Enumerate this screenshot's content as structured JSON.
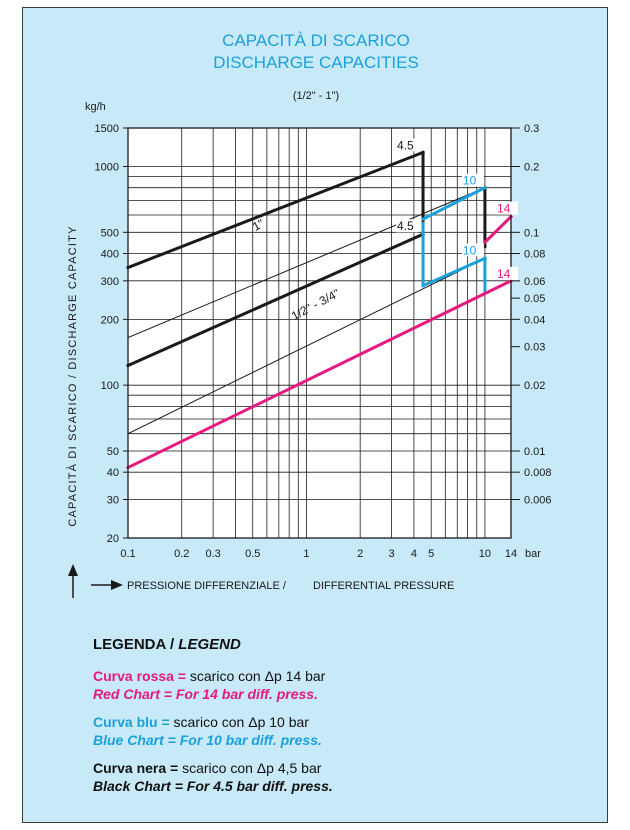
{
  "chart_data": {
    "type": "line",
    "title": [
      "CAPACITÀ DI SCARICO",
      "DISCHARGE CAPACITIES"
    ],
    "subtitle": "(1/2\" - 1\")",
    "x_scale": "log",
    "y_scale": "log",
    "xlim": [
      0.1,
      14
    ],
    "ylim": [
      20,
      1500
    ],
    "y2lim": [
      0.006,
      0.3
    ],
    "y_unit": "kg/h",
    "x_unit": "bar",
    "ylabel": "CAPACITÀ DI SCARICO / DISCHARGE CAPACITY",
    "xlabel": [
      "PRESSIONE DIFFERENZIALE /",
      "DIFFERENTIAL PRESSURE"
    ],
    "x_ticks": [
      {
        "v": 0.1,
        "label": "0.1"
      },
      {
        "v": 0.2,
        "label": "0.2"
      },
      {
        "v": 0.3,
        "label": "0.3"
      },
      {
        "v": 0.5,
        "label": "0.5"
      },
      {
        "v": 1,
        "label": "1"
      },
      {
        "v": 2,
        "label": "2"
      },
      {
        "v": 3,
        "label": "3"
      },
      {
        "v": 4,
        "label": "4"
      },
      {
        "v": 5,
        "label": "5"
      },
      {
        "v": 10,
        "label": "10"
      },
      {
        "v": 14,
        "label": "14"
      }
    ],
    "x_grid": [
      0.1,
      0.2,
      0.3,
      0.4,
      0.5,
      0.6,
      0.7,
      0.8,
      0.9,
      1,
      2,
      3,
      4,
      5,
      6,
      7,
      8,
      9,
      10
    ],
    "y_ticks": [
      {
        "v": 20,
        "label": "20"
      },
      {
        "v": 30,
        "label": "30"
      },
      {
        "v": 40,
        "label": "40"
      },
      {
        "v": 50,
        "label": "50"
      },
      {
        "v": 100,
        "label": "100"
      },
      {
        "v": 200,
        "label": "200"
      },
      {
        "v": 300,
        "label": "300"
      },
      {
        "v": 400,
        "label": "400"
      },
      {
        "v": 500,
        "label": "500"
      },
      {
        "v": 1000,
        "label": "1000"
      },
      {
        "v": 1500,
        "label": "1500"
      }
    ],
    "y_grid": [
      30,
      40,
      50,
      60,
      70,
      80,
      90,
      100,
      200,
      300,
      400,
      500,
      600,
      700,
      800,
      900,
      1000
    ],
    "y2_ticks": [
      {
        "v": 0.3,
        "label": "0.3"
      },
      {
        "v": 0.2,
        "label": "0.2"
      },
      {
        "v": 0.1,
        "label": "0.1"
      },
      {
        "v": 0.08,
        "label": "0.08"
      },
      {
        "v": 0.06,
        "label": "0.06"
      },
      {
        "v": 0.05,
        "label": "0.05"
      },
      {
        "v": 0.04,
        "label": "0.04"
      },
      {
        "v": 0.03,
        "label": "0.03"
      },
      {
        "v": 0.02,
        "label": "0.02"
      },
      {
        "v": 0.01,
        "label": "0.01"
      },
      {
        "v": 0.008,
        "label": "0.008"
      },
      {
        "v": 0.006,
        "label": "0.006"
      }
    ],
    "series": [
      {
        "name": "1\"",
        "color": "#1a1a1a",
        "width": 3,
        "points": [
          [
            0.1,
            345
          ],
          [
            4.5,
            1160
          ]
        ]
      },
      {
        "name": "1/2\" - 3/4\"",
        "color": "#1a1a1a",
        "width": 3,
        "points": [
          [
            0.1,
            123
          ],
          [
            4.5,
            490
          ]
        ]
      },
      {
        "color": "#1a1a1a",
        "width": 1,
        "points": [
          [
            0.1,
            165
          ],
          [
            10,
            800
          ]
        ]
      },
      {
        "color": "#1a1a1a",
        "width": 1,
        "points": [
          [
            0.1,
            60
          ],
          [
            10,
            380
          ]
        ]
      },
      {
        "color": "#1a1a1a",
        "width": 3,
        "points": [
          [
            4.5,
            1160
          ],
          [
            4.5,
            550
          ]
        ]
      },
      {
        "color": "#1a1a1a",
        "width": 3,
        "points": [
          [
            10,
            800
          ],
          [
            10,
            430
          ]
        ]
      },
      {
        "color": "#1aa1dc",
        "width": 3,
        "points": [
          [
            4.5,
            550
          ],
          [
            4.5,
            500
          ]
        ]
      },
      {
        "color": "#1aa1dc",
        "width": 3,
        "points": [
          [
            4.5,
            575
          ],
          [
            10,
            800
          ]
        ]
      },
      {
        "color": "#1aa1dc",
        "width": 3,
        "points": [
          [
            4.5,
            490
          ],
          [
            4.5,
            285
          ]
        ]
      },
      {
        "color": "#1aa1dc",
        "width": 3,
        "points": [
          [
            4.5,
            285
          ],
          [
            10,
            380
          ]
        ]
      },
      {
        "color": "#1aa1dc",
        "width": 3,
        "points": [
          [
            10,
            380
          ],
          [
            10,
            265
          ]
        ]
      },
      {
        "color": "#e6197f",
        "width": 3,
        "points": [
          [
            0.1,
            42
          ],
          [
            14,
            300
          ]
        ]
      },
      {
        "color": "#e6197f",
        "width": 3,
        "points": [
          [
            10,
            450
          ],
          [
            14,
            590
          ]
        ]
      }
    ],
    "annotations": [
      {
        "text": "4.5",
        "x": 4.5,
        "y": 1160,
        "color": "#1a1a1a"
      },
      {
        "text": "4.5",
        "x": 4.5,
        "y": 490,
        "color": "#1a1a1a"
      },
      {
        "text": "10",
        "x": 10,
        "y": 800,
        "color": "#1aa1dc"
      },
      {
        "text": "10",
        "x": 10,
        "y": 380,
        "color": "#1aa1dc"
      },
      {
        "text": "14",
        "x": 14,
        "y": 590,
        "color": "#e6197f"
      },
      {
        "text": "14",
        "x": 14,
        "y": 300,
        "color": "#e6197f"
      }
    ],
    "line_labels": [
      {
        "text": "1\"",
        "x": 0.55,
        "y": 520
      },
      {
        "text": "1/2\" - 3/4\"",
        "x": 1.15,
        "y": 225
      }
    ],
    "grid": true
  },
  "legend": {
    "heading_it": "LEGENDA / ",
    "heading_en": "LEGEND",
    "entries": [
      {
        "key_it": "Curva rossa =",
        "text_it": " scarico con Δp 14 bar",
        "key_en": "Red Chart =",
        "text_en": " For 14 bar diff. press.",
        "color": "#e6197f"
      },
      {
        "key_it": "Curva blu =",
        "text_it": " scarico con Δp 10 bar",
        "key_en": "Blue Chart =",
        "text_en": " For 10 bar diff. press.",
        "color": "#1aa1dc"
      },
      {
        "key_it": "Curva nera =",
        "text_it": " scarico con Δp 4,5 bar",
        "key_en": "Black Chart =",
        "text_en": " For 4.5 bar diff. press.",
        "color": "#111111"
      }
    ]
  }
}
